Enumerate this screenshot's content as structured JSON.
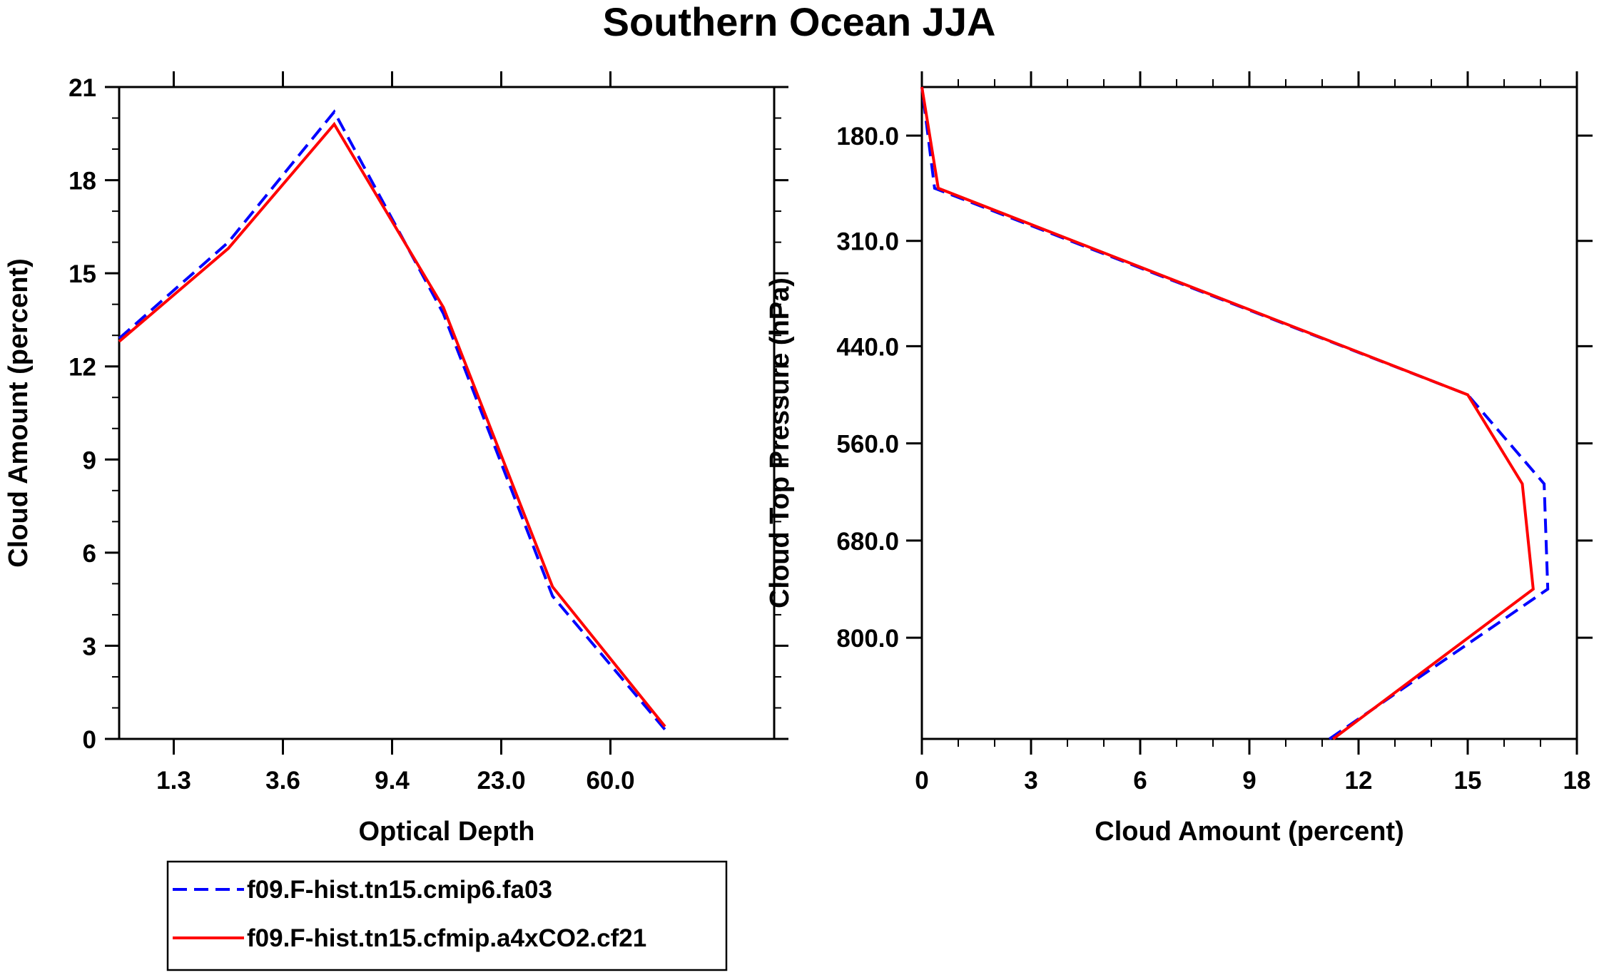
{
  "figure": {
    "title": "Southern Ocean JJA"
  },
  "legend": {
    "entries": [
      {
        "label": "f09.F-hist.tn15.cmip6.fa03",
        "color": "#0000ff",
        "dash": "dashed"
      },
      {
        "label": "f09.F-hist.tn15.cfmip.a4xCO2.cf21",
        "color": "#ff0000",
        "dash": "solid"
      }
    ]
  },
  "chart_data": [
    {
      "type": "line",
      "title": "",
      "xlabel": "Optical Depth",
      "ylabel": "Cloud Amount (percent)",
      "x": [
        0,
        1,
        2,
        3,
        4,
        5,
        6
      ],
      "x_note": "optical depth bins (categorical positions)",
      "xlim": [
        0,
        6
      ],
      "xticks": [
        0.5,
        1.5,
        2.5,
        3.5,
        4.5
      ],
      "xtick_labels": [
        "1.3",
        "3.6",
        "9.4",
        "23.0",
        "60.0"
      ],
      "ylim": [
        0,
        21
      ],
      "yticks": [
        0,
        3,
        6,
        9,
        12,
        15,
        18,
        21
      ],
      "ytick_labels": [
        "0",
        "3",
        "6",
        "9",
        "12",
        "15",
        "18",
        "21"
      ],
      "series": [
        {
          "name": "f09.F-hist.tn15.cmip6.fa03",
          "color": "#0000ff",
          "dash": "dashed",
          "values": [
            12.9,
            16.0,
            20.2,
            13.7,
            4.6,
            0.3
          ],
          "x": [
            0,
            1.0,
            1.97,
            2.97,
            3.97,
            5.0
          ]
        },
        {
          "name": "f09.F-hist.tn15.cfmip.a4xCO2.cf21",
          "color": "#ff0000",
          "dash": "solid",
          "values": [
            12.8,
            15.8,
            19.8,
            13.9,
            4.9,
            0.4
          ],
          "x": [
            0,
            1.0,
            1.97,
            2.97,
            3.97,
            5.0
          ]
        }
      ]
    },
    {
      "type": "line",
      "title": "",
      "xlabel": "Cloud Amount (percent)",
      "ylabel": "Cloud Top Pressure (hPa)",
      "xlim": [
        0,
        18
      ],
      "xticks": [
        0,
        3,
        6,
        9,
        12,
        15,
        18
      ],
      "xtick_labels": [
        "0",
        "3",
        "6",
        "9",
        "12",
        "15",
        "18"
      ],
      "ylim": [
        925,
        120
      ],
      "yticks": [
        180,
        310,
        440,
        560,
        680,
        800
      ],
      "ytick_labels": [
        "180.0",
        "310.0",
        "440.0",
        "560.0",
        "680.0",
        "800.0"
      ],
      "series": [
        {
          "name": "f09.F-hist.tn15.cmip6.fa03",
          "color": "#0000ff",
          "dash": "dashed",
          "x": [
            11.2,
            17.2,
            17.1,
            15.0,
            0.35,
            0.0
          ],
          "y": [
            925,
            740,
            610,
            500,
            245,
            120
          ]
        },
        {
          "name": "f09.F-hist.tn15.cfmip.a4xCO2.cf21",
          "color": "#ff0000",
          "dash": "solid",
          "x": [
            11.3,
            16.8,
            16.5,
            15.0,
            0.45,
            0.0
          ],
          "y": [
            925,
            740,
            610,
            500,
            245,
            120
          ]
        }
      ]
    }
  ]
}
